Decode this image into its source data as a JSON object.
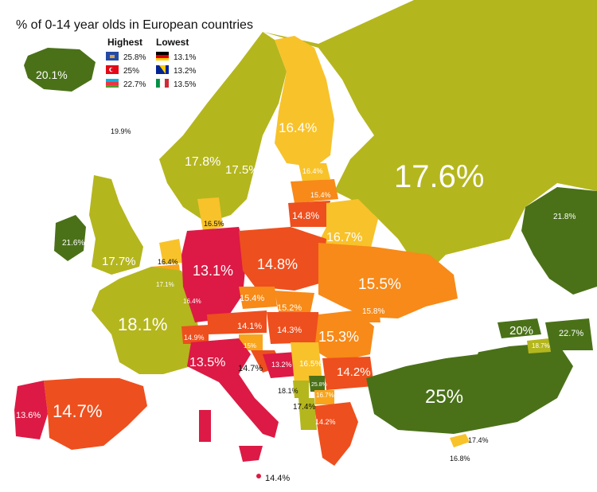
{
  "title": "% of 0-14 year olds in European countries",
  "legend": {
    "highest_label": "Highest",
    "lowest_label": "Lowest",
    "highest": [
      {
        "value": "25.8%",
        "flag": "kosovo-flag-icon"
      },
      {
        "value": "25%",
        "flag": "turkey-flag-icon"
      },
      {
        "value": "22.7%",
        "flag": "azerbaijan-flag-icon"
      }
    ],
    "lowest": [
      {
        "value": "13.1%",
        "flag": "germany-flag-icon"
      },
      {
        "value": "13.2%",
        "flag": "bosnia-flag-icon"
      },
      {
        "value": "13.5%",
        "flag": "italy-flag-icon"
      }
    ]
  },
  "colors": {
    "olive": "#b4b61d",
    "dark_green": "#4a7118",
    "yellow": "#f8c22a",
    "orange": "#f78a18",
    "orange_red": "#ee4f1e",
    "red": "#dc1a45",
    "light_orange": "#f9a51c",
    "sea": "#ffffff"
  },
  "labels": [
    {
      "text": "20.1%"
    },
    {
      "text": "19.9%"
    },
    {
      "text": "17.8%"
    },
    {
      "text": "17.5%"
    },
    {
      "text": "16.4%"
    },
    {
      "text": "17.6%"
    },
    {
      "text": "16.4%"
    },
    {
      "text": "15.4%"
    },
    {
      "text": "14.8%"
    },
    {
      "text": "16.5%"
    },
    {
      "text": "16.7%"
    },
    {
      "text": "21.6%"
    },
    {
      "text": "17.7%"
    },
    {
      "text": "16.4%"
    },
    {
      "text": "13.1%"
    },
    {
      "text": "14.8%"
    },
    {
      "text": "15.5%"
    },
    {
      "text": "17.1%"
    },
    {
      "text": "16.4%"
    },
    {
      "text": "15.4%"
    },
    {
      "text": "15.2%"
    },
    {
      "text": "15.8%"
    },
    {
      "text": "18.1%"
    },
    {
      "text": "14.1%"
    },
    {
      "text": "14.3%"
    },
    {
      "text": "14.9%"
    },
    {
      "text": "15.3%"
    },
    {
      "text": "15%"
    },
    {
      "text": "13.5%"
    },
    {
      "text": "14.7%"
    },
    {
      "text": "13.2%"
    },
    {
      "text": "16.5%"
    },
    {
      "text": "14.2%"
    },
    {
      "text": "25.8%"
    },
    {
      "text": "18.1%"
    },
    {
      "text": "16.7%"
    },
    {
      "text": "17.4%"
    },
    {
      "text": "25%"
    },
    {
      "text": "14.2%"
    },
    {
      "text": "13.6%"
    },
    {
      "text": "14.7%"
    },
    {
      "text": "17.4%"
    },
    {
      "text": "16.8%"
    },
    {
      "text": "14.4%"
    },
    {
      "text": "21.8%"
    },
    {
      "text": "20%"
    },
    {
      "text": "22.7%"
    },
    {
      "text": "18.7%"
    }
  ]
}
